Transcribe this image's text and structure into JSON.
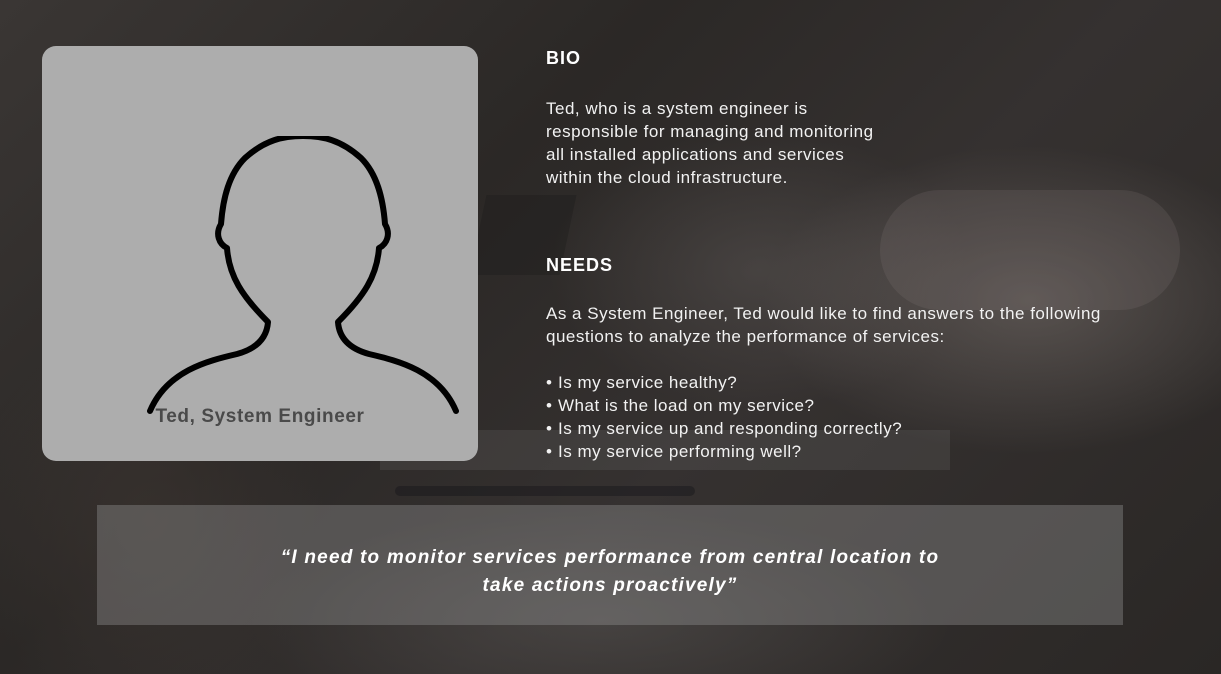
{
  "persona": {
    "caption": "Ted, System Engineer"
  },
  "bio": {
    "title": "BIO",
    "lines": [
      "Ted, who is a system engineer is",
      "responsible for managing and monitoring",
      "all installed applications and services",
      "within the cloud infrastructure."
    ]
  },
  "needs": {
    "title": "NEEDS",
    "intro_lines": [
      "As a System Engineer, Ted would like to find answers to the following",
      "questions to analyze the performance of services:"
    ],
    "bullet": "•",
    "items": [
      "Is my service healthy?",
      "What is the load on my service?",
      "Is my service up and responding correctly?",
      "Is my service performing well?"
    ]
  },
  "quote": {
    "lines": [
      "“I need to monitor services performance from central location to",
      "take actions proactively”"
    ]
  }
}
